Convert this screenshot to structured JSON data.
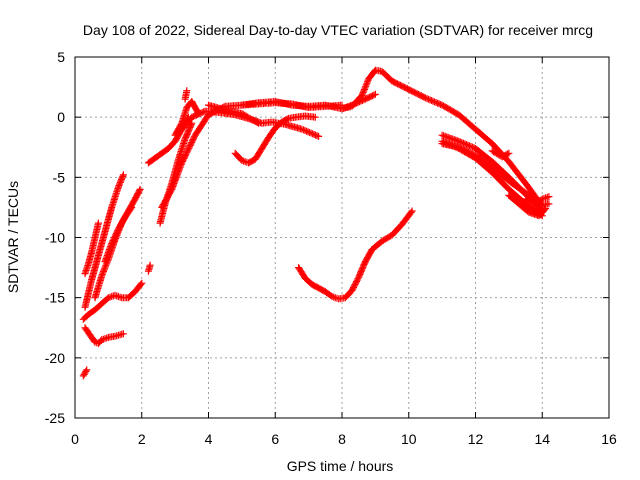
{
  "chart_data": {
    "type": "scatter",
    "title": "Day 108 of 2022, Sidereal Day-to-day VTEC variation (SDTVAR) for receiver mrcg",
    "xlabel": "GPS time / hours",
    "ylabel": "SDTVAR / TECUs",
    "xlim": [
      0,
      16
    ],
    "ylim": [
      -25,
      5
    ],
    "xticks": [
      "0",
      "2",
      "4",
      "6",
      "8",
      "10",
      "12",
      "14",
      "16"
    ],
    "yticks": [
      "5",
      "0",
      "-5",
      "-10",
      "-15",
      "-20",
      "-25"
    ],
    "grid": true,
    "marker": "plus",
    "color": "#ff0000",
    "segments": [
      {
        "x": [
          0.25,
          0.35
        ],
        "y": [
          -21.5,
          -21.0
        ]
      },
      {
        "x": [
          0.3,
          0.5,
          0.6,
          0.7,
          0.8,
          1.0,
          1.2,
          1.45
        ],
        "y": [
          -17.5,
          -18.3,
          -18.7,
          -18.8,
          -18.5,
          -18.3,
          -18.2,
          -18.0
        ]
      },
      {
        "x": [
          0.25,
          0.4,
          0.6,
          0.8,
          1.0,
          1.2,
          1.4,
          1.6,
          1.8,
          2.0
        ],
        "y": [
          -16.8,
          -16.4,
          -16.0,
          -15.5,
          -15.0,
          -14.8,
          -15.0,
          -15.0,
          -14.5,
          -13.8
        ]
      },
      {
        "x": [
          0.3,
          0.4,
          0.5,
          0.6,
          0.7
        ],
        "y": [
          -13.0,
          -12.2,
          -11.2,
          -10.0,
          -8.8
        ]
      },
      {
        "x": [
          0.3,
          0.5,
          0.7,
          0.9,
          1.1,
          1.3,
          1.45
        ],
        "y": [
          -15.8,
          -13.5,
          -11.5,
          -9.5,
          -7.5,
          -5.8,
          -4.8
        ]
      },
      {
        "x": [
          0.6,
          0.8,
          1.0,
          1.2,
          1.4,
          1.6,
          1.8,
          1.95
        ],
        "y": [
          -15.0,
          -13.2,
          -11.8,
          -10.2,
          -8.8,
          -7.8,
          -6.8,
          -6.0
        ]
      },
      {
        "x": [
          0.9,
          1.1,
          1.3,
          1.5,
          1.7
        ],
        "y": [
          -12.0,
          -10.5,
          -9.3,
          -8.3,
          -7.5
        ]
      },
      {
        "x": [
          2.2,
          2.25
        ],
        "y": [
          -12.8,
          -12.3
        ]
      },
      {
        "x": [
          2.2,
          2.5,
          2.8,
          3.0,
          3.2,
          3.4
        ],
        "y": [
          -3.8,
          -3.2,
          -2.6,
          -2.0,
          -1.0,
          0.0
        ]
      },
      {
        "x": [
          2.55,
          2.7,
          2.9,
          3.1,
          3.3,
          3.5
        ],
        "y": [
          -8.8,
          -7.2,
          -5.5,
          -3.5,
          -1.8,
          -0.5
        ]
      },
      {
        "x": [
          2.6,
          2.9,
          3.2,
          3.6,
          4.0,
          4.5,
          5.0,
          5.5,
          6.0,
          6.5,
          7.0,
          7.5,
          8.0
        ],
        "y": [
          -7.5,
          -6.0,
          -3.8,
          -1.5,
          0.2,
          0.9,
          1.0,
          1.1,
          1.2,
          1.1,
          0.8,
          0.9,
          1.0
        ]
      },
      {
        "x": [
          3.2,
          3.5,
          3.9,
          4.3,
          4.8,
          5.3,
          5.6,
          5.9,
          6.3,
          6.8,
          7.3
        ],
        "y": [
          -1.0,
          0.0,
          0.5,
          0.4,
          0.2,
          -0.2,
          -0.5,
          -0.4,
          -0.6,
          -1.0,
          -1.6
        ]
      },
      {
        "x": [
          3.0,
          3.2,
          3.35,
          3.5,
          3.7
        ],
        "y": [
          -1.5,
          -0.5,
          0.8,
          1.3,
          0.3
        ]
      },
      {
        "x": [
          3.3,
          3.35
        ],
        "y": [
          1.5,
          2.2
        ]
      },
      {
        "x": [
          4.0,
          4.5,
          5.0,
          5.3,
          5.5
        ],
        "y": [
          1.0,
          0.6,
          0.3,
          -0.2,
          -0.5
        ]
      },
      {
        "x": [
          4.8,
          5.0,
          5.2,
          5.4,
          5.6,
          5.8,
          6.0,
          6.2,
          6.4,
          6.6,
          6.9,
          7.2
        ],
        "y": [
          -3.0,
          -3.6,
          -3.8,
          -3.5,
          -2.6,
          -1.7,
          -0.9,
          -0.4,
          -0.1,
          0.0,
          0.1,
          0.0
        ]
      },
      {
        "x": [
          5.0,
          5.5,
          6.0,
          6.5,
          7.0,
          7.5,
          8.0,
          8.3,
          8.6,
          8.8,
          9.0,
          9.2,
          9.5,
          10.0,
          10.5,
          11.0,
          11.5,
          12.0,
          12.5,
          13.0,
          13.5,
          14.0
        ],
        "y": [
          1.0,
          1.2,
          1.3,
          1.0,
          0.9,
          1.0,
          0.7,
          0.9,
          1.8,
          3.2,
          3.9,
          3.8,
          3.0,
          2.3,
          1.6,
          1.0,
          0.2,
          -1.0,
          -2.2,
          -3.7,
          -5.5,
          -7.4
        ]
      },
      {
        "x": [
          8.0,
          8.3,
          8.7,
          9.0
        ],
        "y": [
          0.7,
          1.0,
          1.5,
          1.9
        ]
      },
      {
        "x": [
          6.7,
          6.9,
          7.1,
          7.3,
          7.5,
          7.7,
          7.9,
          8.1,
          8.3,
          8.5,
          8.7,
          8.9,
          9.2,
          9.5,
          9.8,
          10.1
        ],
        "y": [
          -12.5,
          -13.4,
          -13.9,
          -14.2,
          -14.5,
          -14.9,
          -15.1,
          -15.0,
          -14.4,
          -13.3,
          -12.0,
          -11.0,
          -10.3,
          -9.8,
          -8.9,
          -7.8
        ]
      },
      {
        "x": [
          11.0,
          11.5,
          12.0,
          12.5,
          13.0,
          13.5,
          14.0,
          14.2
        ],
        "y": [
          -2.2,
          -2.5,
          -3.2,
          -4.2,
          -5.3,
          -6.3,
          -7.3,
          -7.2
        ]
      },
      {
        "x": [
          11.0,
          11.5,
          12.0,
          12.5,
          13.0,
          13.5,
          14.0
        ],
        "y": [
          -1.5,
          -2.0,
          -2.6,
          -3.7,
          -5.0,
          -6.4,
          -7.8
        ]
      },
      {
        "x": [
          11.0,
          11.5,
          12.0,
          12.5,
          13.0,
          13.5,
          14.0
        ],
        "y": [
          -2.0,
          -2.6,
          -3.4,
          -4.6,
          -6.0,
          -7.2,
          -8.2
        ]
      },
      {
        "x": [
          12.5,
          12.8,
          13.0
        ],
        "y": [
          -2.8,
          -3.3,
          -3.0
        ]
      },
      {
        "x": [
          13.5,
          13.8,
          14.0,
          14.2
        ],
        "y": [
          -6.8,
          -7.2,
          -6.8,
          -6.6
        ]
      },
      {
        "x": [
          13.0,
          13.3,
          13.6,
          13.9,
          14.1
        ],
        "y": [
          -6.5,
          -7.2,
          -7.9,
          -8.2,
          -7.6
        ]
      }
    ]
  }
}
